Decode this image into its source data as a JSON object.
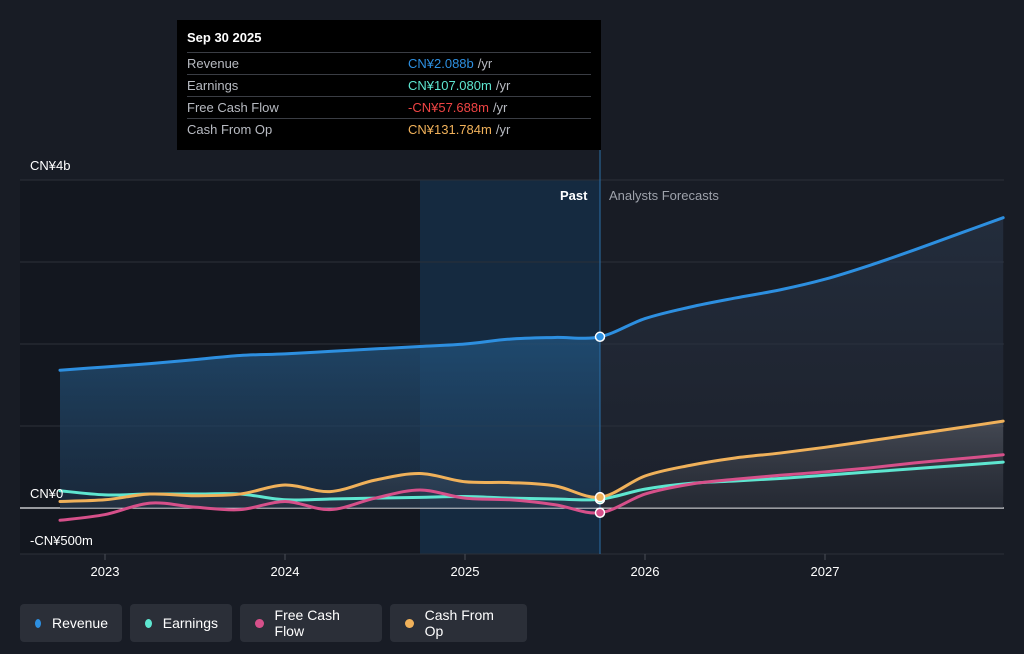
{
  "tooltip": {
    "date": "Sep 30 2025",
    "rows": [
      {
        "label": "Revenue",
        "value": "CN¥2.088b",
        "unit": "/yr",
        "color": "#2d8fe0"
      },
      {
        "label": "Earnings",
        "value": "CN¥107.080m",
        "unit": "/yr",
        "color": "#5ee6d0"
      },
      {
        "label": "Free Cash Flow",
        "value": "-CN¥57.688m",
        "unit": "/yr",
        "color": "#ef4444"
      },
      {
        "label": "Cash From Op",
        "value": "CN¥131.784m",
        "unit": "/yr",
        "color": "#f0b15a"
      }
    ]
  },
  "labels": {
    "past": "Past",
    "forecast": "Analysts Forecasts",
    "y_top": "CN¥4b",
    "y_zero": "CN¥0",
    "y_bottom": "-CN¥500m"
  },
  "legend": [
    {
      "label": "Revenue",
      "color": "#2d8fe0"
    },
    {
      "label": "Earnings",
      "color": "#5ee6d0"
    },
    {
      "label": "Free Cash Flow",
      "color": "#d6508a"
    },
    {
      "label": "Cash From Op",
      "color": "#f0b15a"
    }
  ],
  "chart_data": {
    "type": "line",
    "x_ticks": [
      "2023",
      "2024",
      "2025",
      "2026",
      "2027"
    ],
    "y_ticks": [
      "CN¥4b",
      "CN¥0",
      "-CN¥500m"
    ],
    "ylim": [
      -500,
      4000
    ],
    "y_unit": "CN¥ millions",
    "past_end": 2025.75,
    "highlight_start": 2024.75,
    "series": [
      {
        "name": "Revenue",
        "color": "#2d8fe0",
        "x": [
          2022.75,
          2023.0,
          2023.25,
          2023.5,
          2023.75,
          2024.0,
          2024.25,
          2024.5,
          2024.75,
          2025.0,
          2025.25,
          2025.5,
          2025.75,
          2026.0,
          2026.25,
          2026.5,
          2026.75,
          2027.0,
          2027.25,
          2027.5,
          2027.75,
          2027.99
        ],
        "y": [
          1680,
          1720,
          1760,
          1810,
          1860,
          1880,
          1910,
          1940,
          1970,
          2000,
          2060,
          2080,
          2088,
          2310,
          2450,
          2560,
          2660,
          2790,
          2960,
          3150,
          3350,
          3540
        ]
      },
      {
        "name": "Earnings",
        "color": "#5ee6d0",
        "x": [
          2022.75,
          2023.0,
          2023.25,
          2023.5,
          2023.75,
          2024.0,
          2024.25,
          2024.5,
          2024.75,
          2025.0,
          2025.25,
          2025.5,
          2025.75,
          2026.0,
          2026.25,
          2026.5,
          2026.75,
          2027.0,
          2027.25,
          2027.5,
          2027.75,
          2027.99
        ],
        "y": [
          210,
          160,
          170,
          170,
          170,
          100,
          110,
          120,
          130,
          140,
          120,
          110,
          107,
          230,
          300,
          330,
          360,
          400,
          440,
          480,
          520,
          560
        ]
      },
      {
        "name": "Free Cash Flow",
        "color": "#d6508a",
        "x": [
          2022.75,
          2023.0,
          2023.25,
          2023.5,
          2023.75,
          2024.0,
          2024.25,
          2024.5,
          2024.75,
          2025.0,
          2025.25,
          2025.5,
          2025.75,
          2026.0,
          2026.25,
          2026.5,
          2026.75,
          2027.0,
          2027.25,
          2027.5,
          2027.75,
          2027.99
        ],
        "y": [
          -150,
          -80,
          60,
          10,
          -20,
          80,
          -20,
          120,
          220,
          120,
          100,
          40,
          -58,
          170,
          290,
          350,
          400,
          440,
          490,
          550,
          600,
          650
        ]
      },
      {
        "name": "Cash From Op",
        "color": "#f0b15a",
        "x": [
          2022.75,
          2023.0,
          2023.25,
          2023.5,
          2023.75,
          2024.0,
          2024.25,
          2024.5,
          2024.75,
          2025.0,
          2025.25,
          2025.5,
          2025.75,
          2026.0,
          2026.25,
          2026.5,
          2026.75,
          2027.0,
          2027.25,
          2027.5,
          2027.75,
          2027.99
        ],
        "y": [
          80,
          100,
          170,
          150,
          170,
          280,
          200,
          340,
          420,
          320,
          310,
          270,
          132,
          390,
          520,
          610,
          670,
          740,
          820,
          900,
          980,
          1060
        ]
      }
    ]
  }
}
